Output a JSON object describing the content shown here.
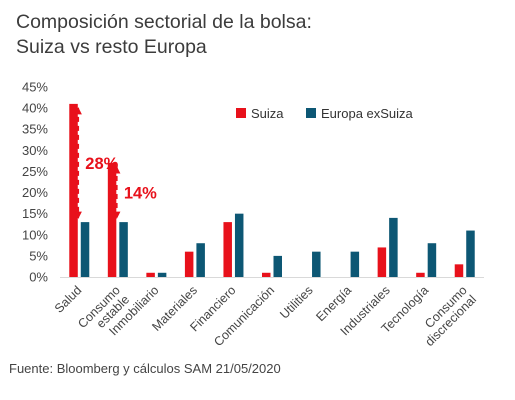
{
  "title_lines": [
    "Composición sectorial de la bolsa:",
    "Suiza vs resto Europa"
  ],
  "source": "Fuente: Bloomberg y cálculos SAM  21/05/2020",
  "chart_data": {
    "type": "bar",
    "categories": [
      "Salud",
      "Consumo estable",
      "Inmobiliario",
      "Materiales",
      "Financiero",
      "Comunicación",
      "Utilities",
      "Energía",
      "Industriales",
      "Tecnología",
      "Consumo discrecional"
    ],
    "category_lines": [
      [
        "Salud"
      ],
      [
        "Consumo",
        "estable"
      ],
      [
        "Inmobiliario"
      ],
      [
        "Materiales"
      ],
      [
        "Financiero"
      ],
      [
        "Comunicación"
      ],
      [
        "Utilities"
      ],
      [
        "Energía"
      ],
      [
        "Industriales"
      ],
      [
        "Tecnología"
      ],
      [
        "Consumo",
        "discrecional"
      ]
    ],
    "series": [
      {
        "name": "Suiza",
        "color": "#e8111b",
        "values": [
          41,
          27,
          1,
          6,
          13,
          1,
          0,
          0,
          7,
          1,
          3
        ]
      },
      {
        "name": "Europa exSuiza",
        "color": "#0d5774",
        "values": [
          13,
          13,
          1,
          8,
          15,
          5,
          6,
          6,
          14,
          8,
          11
        ]
      }
    ],
    "ylim": [
      0,
      45
    ],
    "yticks": [
      0,
      5,
      10,
      15,
      20,
      25,
      30,
      35,
      40,
      45
    ],
    "ytick_labels": [
      "0%",
      "5%",
      "10%",
      "15%",
      "20%",
      "25%",
      "30%",
      "35%",
      "40%",
      "45%"
    ],
    "legend_position": "top-right",
    "annotations": [
      {
        "text": "28%",
        "category": "Salud",
        "from": 41,
        "to": 13,
        "color": "#e8111b"
      },
      {
        "text": "14%",
        "category": "Consumo estable",
        "from": 27,
        "to": 13,
        "color": "#e8111b"
      }
    ]
  }
}
